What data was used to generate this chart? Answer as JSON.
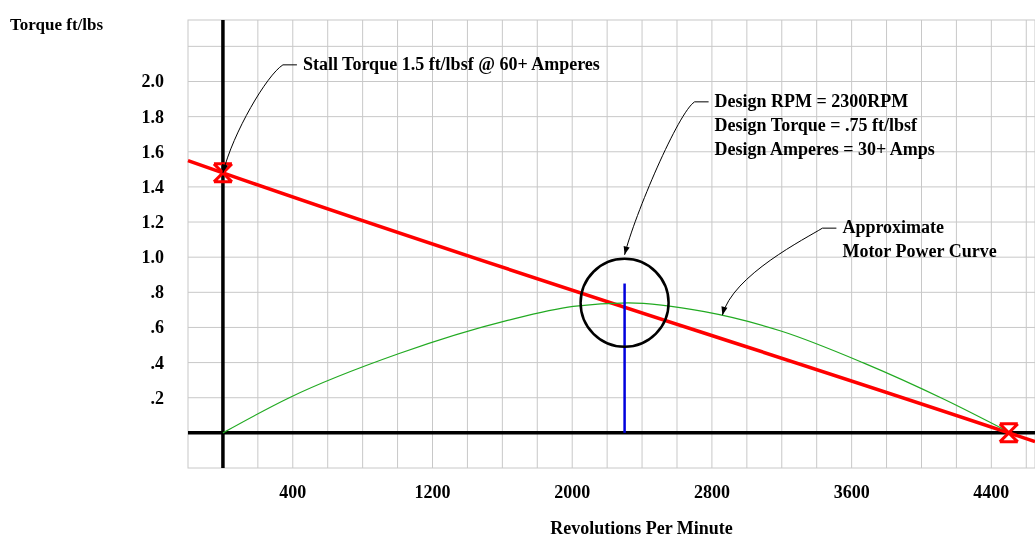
{
  "chart_data": {
    "type": "line",
    "xlabel": "Revolutions Per Minute",
    "ylabel": "Torque ft/lbs",
    "xlim": [
      -200,
      4650
    ],
    "ylim": [
      -0.2,
      2.35
    ],
    "xticks": [
      {
        "value": 200,
        "label": null
      },
      {
        "value": 400,
        "label": "400"
      },
      {
        "value": 600,
        "label": null
      },
      {
        "value": 800,
        "label": null
      },
      {
        "value": 1000,
        "label": null
      },
      {
        "value": 1200,
        "label": "1200"
      },
      {
        "value": 1400,
        "label": null
      },
      {
        "value": 1600,
        "label": null
      },
      {
        "value": 1800,
        "label": null
      },
      {
        "value": 2000,
        "label": "2000"
      },
      {
        "value": 2200,
        "label": null
      },
      {
        "value": 2400,
        "label": null
      },
      {
        "value": 2600,
        "label": null
      },
      {
        "value": 2800,
        "label": "2800"
      },
      {
        "value": 3000,
        "label": null
      },
      {
        "value": 3200,
        "label": null
      },
      {
        "value": 3400,
        "label": null
      },
      {
        "value": 3600,
        "label": "3600"
      },
      {
        "value": 3800,
        "label": null
      },
      {
        "value": 4000,
        "label": null
      },
      {
        "value": 4200,
        "label": null
      },
      {
        "value": 4400,
        "label": "4400"
      },
      {
        "value": 4600,
        "label": null
      }
    ],
    "yticks": [
      {
        "value": 0.2,
        "label": ".2"
      },
      {
        "value": 0.4,
        "label": ".4"
      },
      {
        "value": 0.6,
        "label": ".6"
      },
      {
        "value": 0.8,
        "label": ".8"
      },
      {
        "value": 1.0,
        "label": "1.0"
      },
      {
        "value": 1.2,
        "label": "1.2"
      },
      {
        "value": 1.4,
        "label": "1.4"
      },
      {
        "value": 1.6,
        "label": "1.6"
      },
      {
        "value": 1.8,
        "label": "1.8"
      },
      {
        "value": 2.0,
        "label": "2.0"
      },
      {
        "value": 2.2,
        "label": null
      }
    ],
    "grid": true,
    "series": [
      {
        "color": "#ff0000",
        "x": [
          -200,
          0,
          4500,
          4650
        ],
        "values": [
          1.55,
          1.48,
          0,
          -0.05
        ]
      },
      {
        "color": "#22aa22",
        "x": [
          0,
          380,
          1005,
          1630,
          2006,
          2320,
          2757,
          3195,
          3664,
          4132,
          4510
        ],
        "values": [
          0,
          0.2,
          0.45,
          0.64,
          0.72,
          0.74,
          0.69,
          0.58,
          0.4,
          0.19,
          0
        ]
      },
      {
        "color": "#0000dd",
        "x": [
          2300,
          2300
        ],
        "values": [
          0,
          0.85
        ]
      },
      {
        "type": "scatter",
        "color": "#ff0000",
        "marker": "cross",
        "x": [
          0,
          4500
        ],
        "values": [
          1.48,
          0
        ]
      }
    ],
    "annotations": [
      {
        "text": "Stall Torque 1.5 ft/lbsf @ 60+ Amperes",
        "x": 0,
        "y": 1.48
      },
      "Design RPM = 2300RPM\nDesign Torque = .75 ft/lbsf\nDesign Amperes = 30+ Amps",
      {
        "text": "Approximate\nMotor Power Curve",
        "x": 2860,
        "y": 0.67
      }
    ]
  }
}
